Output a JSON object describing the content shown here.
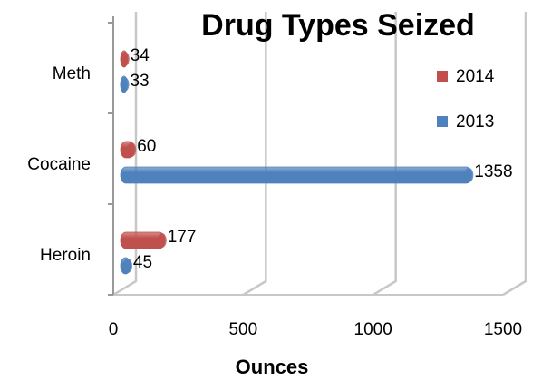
{
  "chart_data": {
    "type": "bar",
    "orientation": "horizontal",
    "title": "Drug Types Seized",
    "categories": [
      "Meth",
      "Cocaine",
      "Heroin"
    ],
    "series": [
      {
        "name": "2014",
        "color": "#c0504d",
        "values": [
          34,
          60,
          177
        ]
      },
      {
        "name": "2013",
        "color": "#4f81bd",
        "values": [
          33,
          1358,
          45
        ]
      }
    ],
    "xlabel": "Ounces",
    "xlim": [
      0,
      1500
    ],
    "xticks": [
      0,
      500,
      1000,
      1500
    ],
    "grid": true,
    "legend": "right"
  }
}
